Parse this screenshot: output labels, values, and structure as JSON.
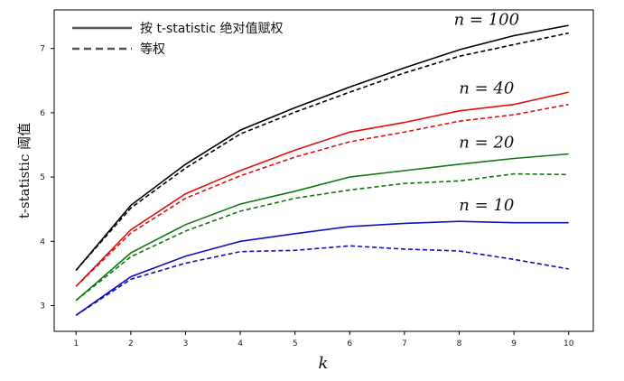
{
  "chart_data": {
    "type": "line",
    "xlabel": "k",
    "ylabel": "t-statistic 阈值",
    "x": [
      1,
      2,
      3,
      4,
      5,
      6,
      7,
      8,
      9,
      10
    ],
    "xlim": [
      0.6,
      10.45
    ],
    "ylim": [
      2.6,
      7.6
    ],
    "xticks": [
      "1",
      "2",
      "3",
      "4",
      "5",
      "6",
      "7",
      "8",
      "9",
      "10"
    ],
    "yticks": [
      "3",
      "4",
      "5",
      "6",
      "7"
    ],
    "grid": false,
    "legend": {
      "position": "top-left",
      "entries": [
        {
          "label": "按 t-statistic 绝对值赋权",
          "style": "solid"
        },
        {
          "label": "等权",
          "style": "dashed"
        }
      ]
    },
    "series": [
      {
        "label": "n = 100",
        "color": "#000000",
        "solid": [
          3.55,
          4.56,
          5.2,
          5.73,
          6.08,
          6.4,
          6.7,
          6.98,
          7.2,
          7.36
        ],
        "dashed": [
          3.55,
          4.52,
          5.14,
          5.67,
          6.01,
          6.32,
          6.62,
          6.88,
          7.06,
          7.24
        ]
      },
      {
        "label": "n = 40",
        "color": "#dd1111",
        "solid": [
          3.3,
          4.18,
          4.74,
          5.1,
          5.42,
          5.7,
          5.85,
          6.03,
          6.13,
          6.32
        ],
        "dashed": [
          3.3,
          4.13,
          4.67,
          5.02,
          5.31,
          5.55,
          5.7,
          5.87,
          5.97,
          6.13
        ]
      },
      {
        "label": "n = 20",
        "color": "#117711",
        "solid": [
          3.08,
          3.82,
          4.26,
          4.58,
          4.78,
          5.0,
          5.1,
          5.2,
          5.29,
          5.36
        ],
        "dashed": [
          3.08,
          3.76,
          4.16,
          4.47,
          4.67,
          4.8,
          4.9,
          4.94,
          5.05,
          5.04
        ]
      },
      {
        "label": "n = 10",
        "color": "#1111bb",
        "solid": [
          2.85,
          3.45,
          3.77,
          4.0,
          4.12,
          4.23,
          4.28,
          4.31,
          4.29,
          4.29
        ],
        "dashed": [
          2.85,
          3.41,
          3.66,
          3.84,
          3.86,
          3.93,
          3.88,
          3.85,
          3.72,
          3.57
        ]
      }
    ]
  }
}
